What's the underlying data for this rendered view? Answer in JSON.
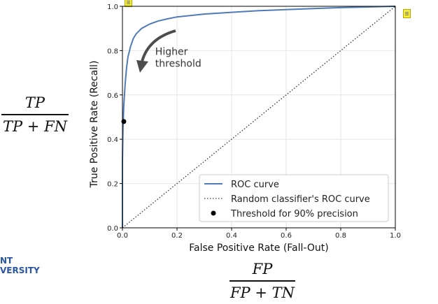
{
  "formulas": {
    "tpr": {
      "numerator": "TP",
      "denominator": "TP + FN"
    },
    "fpr": {
      "numerator": "FP",
      "denominator": "FP + TN"
    }
  },
  "logo_text": [
    "NT",
    "VERSITY"
  ],
  "chart_data": {
    "type": "line",
    "xlabel": "False Positive Rate (Fall-Out)",
    "ylabel": "True Positive Rate (Recall)",
    "xlim": [
      0.0,
      1.0
    ],
    "ylim": [
      0.0,
      1.0
    ],
    "xticks": [
      "0.0",
      "0.2",
      "0.4",
      "0.6",
      "0.8",
      "1.0"
    ],
    "yticks": [
      "0.0",
      "0.2",
      "0.4",
      "0.6",
      "0.8",
      "1.0"
    ],
    "grid": true,
    "legend_position": "lower-right",
    "annotation": {
      "text": [
        "Higher",
        "threshold"
      ],
      "x": 0.12,
      "y": 0.78
    },
    "series": [
      {
        "name": "ROC curve",
        "style": "solid",
        "color": "#4f7bb8",
        "x": [
          0.0,
          0.0,
          0.002,
          0.005,
          0.01,
          0.015,
          0.02,
          0.03,
          0.04,
          0.05,
          0.07,
          0.1,
          0.13,
          0.16,
          0.2,
          0.3,
          0.4,
          0.5,
          0.6,
          0.7,
          0.8,
          0.9,
          1.0
        ],
        "y": [
          0.0,
          0.3,
          0.45,
          0.55,
          0.65,
          0.72,
          0.77,
          0.82,
          0.855,
          0.875,
          0.9,
          0.92,
          0.933,
          0.942,
          0.952,
          0.965,
          0.973,
          0.98,
          0.985,
          0.99,
          0.994,
          0.997,
          1.0
        ]
      },
      {
        "name": "Random classifier's ROC curve",
        "style": "dotted",
        "color": "#333333",
        "x": [
          0.0,
          1.0
        ],
        "y": [
          0.0,
          1.0
        ]
      }
    ],
    "points": [
      {
        "name": "Threshold for 90% precision",
        "x": 0.005,
        "y": 0.48,
        "color": "#000000"
      }
    ]
  }
}
